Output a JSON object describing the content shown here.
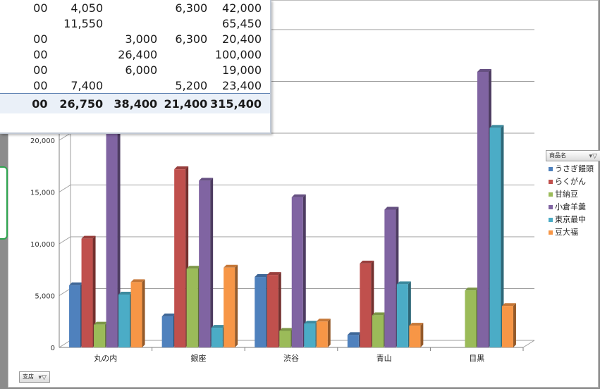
{
  "pivot": {
    "rows": [
      {
        "cells": [
          "00",
          "4,050",
          "",
          "6,300",
          "42,000"
        ]
      },
      {
        "cells": [
          "",
          "11,550",
          "",
          "",
          "65,450"
        ]
      },
      {
        "cells": [
          "00",
          "",
          "3,000",
          "6,300",
          "20,400"
        ]
      },
      {
        "cells": [
          "00",
          "",
          "26,400",
          "",
          "100,000"
        ]
      },
      {
        "cells": [
          "00",
          "",
          "6,000",
          "",
          "19,000"
        ]
      },
      {
        "cells": [
          "00",
          "7,400",
          "",
          "5,200",
          "23,400"
        ]
      }
    ],
    "total": [
      "00",
      "26,750",
      "38,400",
      "21,400",
      "315,400"
    ]
  },
  "legend_field": {
    "label": "商品名",
    "filter_icon": "filter-icon"
  },
  "axis_field": {
    "label": "支店",
    "filter_icon": "filter-icon"
  },
  "colors": {
    "series": [
      "#4f81bd",
      "#c0504d",
      "#9bbb59",
      "#8064a2",
      "#4bacc6",
      "#f79646"
    ]
  },
  "chart_data": {
    "type": "bar",
    "variant": "3d-clustered-column",
    "categories": [
      "丸の内",
      "銀座",
      "渋谷",
      "青山",
      "目黒"
    ],
    "y_ticks": [
      "0",
      "5,000",
      "10,000",
      "15,000",
      "20,000"
    ],
    "ylim": [
      0,
      30000
    ],
    "grid": true,
    "legend_position": "right",
    "series": [
      {
        "name": "うさぎ饅頭",
        "values": [
          6000,
          3000,
          6800,
          1200,
          0
        ]
      },
      {
        "name": "らくがん",
        "values": [
          10500,
          17200,
          7000,
          8100,
          0
        ]
      },
      {
        "name": "甘納豆",
        "values": [
          2200,
          7600,
          1600,
          3100,
          5500
        ]
      },
      {
        "name": "小倉羊羹",
        "values": [
          25000,
          16100,
          14500,
          13300,
          26600
        ]
      },
      {
        "name": "東京最中",
        "values": [
          5100,
          1900,
          2300,
          6100,
          21200
        ]
      },
      {
        "name": "豆大福",
        "values": [
          6300,
          7700,
          2500,
          2100,
          4000
        ]
      }
    ]
  }
}
